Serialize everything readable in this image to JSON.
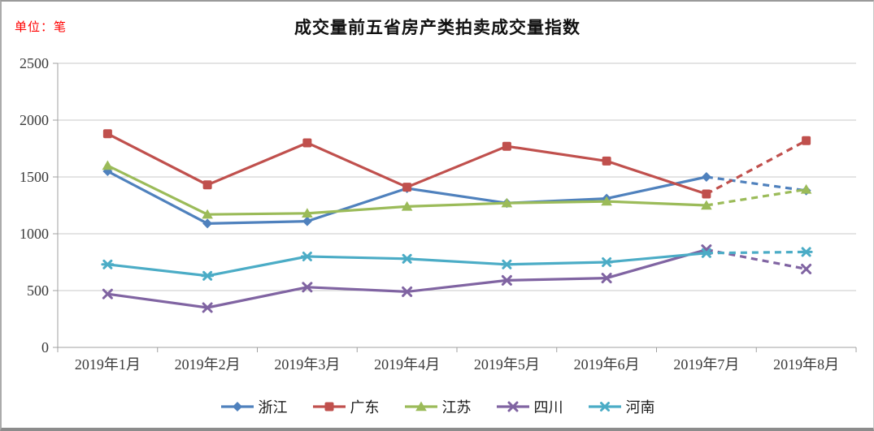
{
  "chart_data": {
    "type": "line",
    "title": "成交量前五省房产类拍卖成交量指数",
    "unit_label": "单位：笔",
    "unit_label_color": "#ff0000",
    "categories": [
      "2019年1月",
      "2019年2月",
      "2019年3月",
      "2019年4月",
      "2019年5月",
      "2019年6月",
      "2019年7月",
      "2019年8月"
    ],
    "series": [
      {
        "name": "浙江",
        "color": "#4F81BD",
        "marker": "diamond",
        "values": [
          1550,
          1090,
          1110,
          1400,
          1270,
          1310,
          1500,
          1380
        ]
      },
      {
        "name": "广东",
        "color": "#C0504D",
        "marker": "square",
        "values": [
          1880,
          1430,
          1800,
          1410,
          1770,
          1640,
          1350,
          1820
        ]
      },
      {
        "name": "江苏",
        "color": "#9BBB59",
        "marker": "triangle",
        "values": [
          1600,
          1170,
          1180,
          1240,
          1270,
          1285,
          1250,
          1390
        ]
      },
      {
        "name": "四川",
        "color": "#8064A2",
        "marker": "x",
        "values": [
          470,
          350,
          530,
          490,
          590,
          610,
          860,
          690
        ]
      },
      {
        "name": "河南",
        "color": "#4BACC6",
        "marker": "asterisk",
        "values": [
          730,
          630,
          800,
          780,
          730,
          750,
          830,
          840
        ]
      }
    ],
    "dashed_segment_start_index": 6,
    "ylim": [
      0,
      2500
    ],
    "yticks": [
      0,
      500,
      1000,
      1500,
      2000,
      2500
    ],
    "xlabel": "",
    "ylabel": "",
    "grid": "horizontal",
    "grid_color": "#c9c9c9",
    "axis_color": "#a0a0a0",
    "tick_text_color": "#3a3a3a",
    "legend_position": "bottom"
  }
}
